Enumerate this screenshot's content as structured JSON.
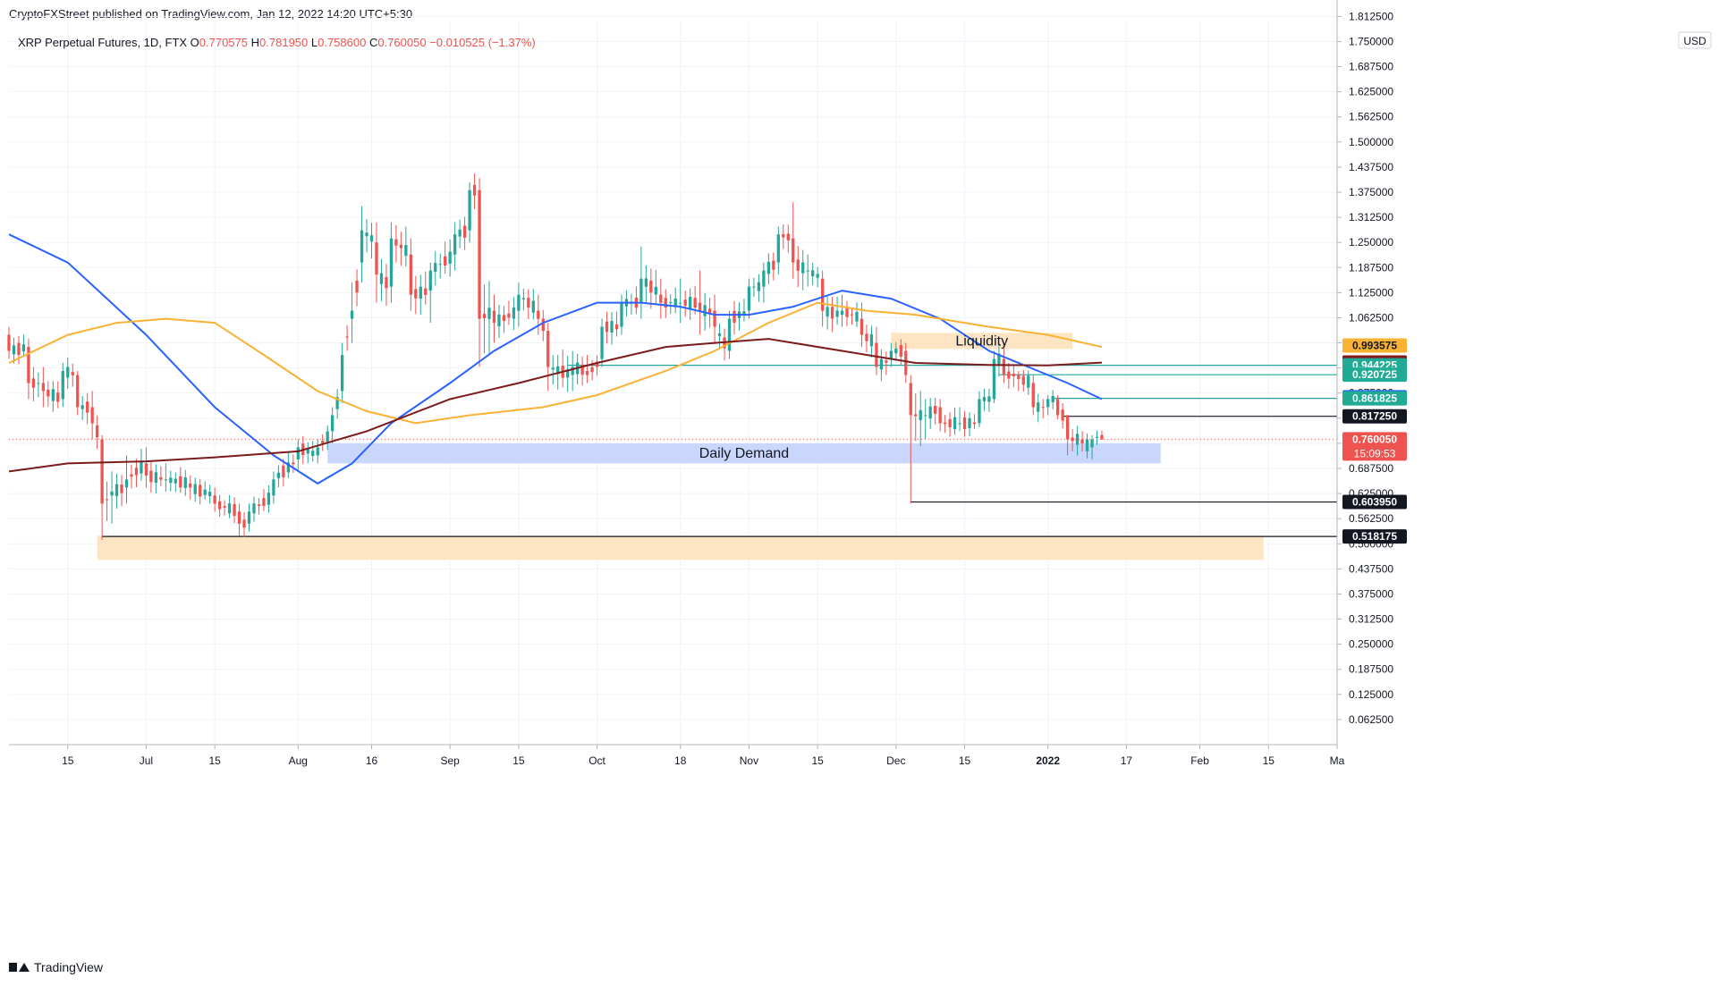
{
  "header": {
    "published": "CryptoFXStreet published on TradingView.com, Jan 12, 2022 14:20 UTC+5:30"
  },
  "footer": {
    "brand": "TradingView"
  },
  "colors": {
    "up": "#26a69a",
    "down": "#ef5350",
    "ma_blue": "#2962ff",
    "ma_orange": "#f9b233",
    "ma_dark": "#7b1b1b",
    "demand_zone": "#c5d5fb",
    "liquidity_zone": "#fde4c0",
    "grid": "#f0f3fa"
  },
  "chart_data": {
    "type": "candlestick",
    "symbol_line": {
      "name": "XRP Perpetual Futures, 1D, FTX",
      "o_label": "O",
      "o": "0.770575",
      "h_label": "H",
      "h": "0.781950",
      "l_label": "L",
      "l": "0.758600",
      "c_label": "C",
      "c": "0.760050",
      "change": "−0.010525 (−1.37%)"
    },
    "currency": "USD",
    "ylim": [
      0.0,
      1.8
    ],
    "y_ticks": [
      "0.062500",
      "0.125000",
      "0.187500",
      "0.250000",
      "0.312500",
      "0.375000",
      "0.437500",
      "0.500000",
      "0.562500",
      "0.625000",
      "0.687500",
      "0.750000",
      "0.812500",
      "0.875000",
      "0.937500",
      "1.000000",
      "1.062500",
      "1.125000",
      "1.187500",
      "1.250000",
      "1.312500",
      "1.375000",
      "1.437500",
      "1.500000",
      "1.562500",
      "1.625000",
      "1.687500",
      "1.750000",
      "1.812500"
    ],
    "x_range": [
      "2021-06-03",
      "2022-03-01"
    ],
    "x_ticks": [
      {
        "date": "2021-06-15",
        "label": "15"
      },
      {
        "date": "2021-07-01",
        "label": "Jul"
      },
      {
        "date": "2021-07-15",
        "label": "15"
      },
      {
        "date": "2021-08-01",
        "label": "Aug"
      },
      {
        "date": "2021-08-16",
        "label": "16"
      },
      {
        "date": "2021-09-01",
        "label": "Sep"
      },
      {
        "date": "2021-09-15",
        "label": "15"
      },
      {
        "date": "2021-10-01",
        "label": "Oct"
      },
      {
        "date": "2021-10-18",
        "label": "18"
      },
      {
        "date": "2021-11-01",
        "label": "Nov"
      },
      {
        "date": "2021-11-15",
        "label": "15"
      },
      {
        "date": "2021-12-01",
        "label": "Dec"
      },
      {
        "date": "2021-12-15",
        "label": "15"
      },
      {
        "date": "2022-01-01",
        "label": "2022"
      },
      {
        "date": "2022-01-17",
        "label": "17"
      },
      {
        "date": "2022-02-01",
        "label": "Feb"
      },
      {
        "date": "2022-02-15",
        "label": "15"
      },
      {
        "date": "2022-03-01",
        "label": "Ma"
      }
    ],
    "ohlc_anchors": [
      [
        "2021-06-03",
        1.02,
        1.04,
        0.96,
        0.98
      ],
      [
        "2021-06-07",
        0.99,
        1.01,
        0.86,
        0.9
      ],
      [
        "2021-06-10",
        0.9,
        0.94,
        0.84,
        0.88
      ],
      [
        "2021-06-14",
        0.86,
        0.95,
        0.84,
        0.93
      ],
      [
        "2021-06-17",
        0.92,
        0.93,
        0.82,
        0.84
      ],
      [
        "2021-06-20",
        0.84,
        0.88,
        0.76,
        0.8
      ],
      [
        "2021-06-22",
        0.76,
        0.77,
        0.51,
        0.6
      ],
      [
        "2021-06-24",
        0.62,
        0.68,
        0.55,
        0.63
      ],
      [
        "2021-06-27",
        0.64,
        0.72,
        0.6,
        0.66
      ],
      [
        "2021-07-01",
        0.7,
        0.74,
        0.64,
        0.67
      ],
      [
        "2021-07-05",
        0.66,
        0.7,
        0.63,
        0.66
      ],
      [
        "2021-07-10",
        0.65,
        0.67,
        0.61,
        0.64
      ],
      [
        "2021-07-15",
        0.62,
        0.64,
        0.58,
        0.6
      ],
      [
        "2021-07-20",
        0.58,
        0.6,
        0.52,
        0.55
      ],
      [
        "2021-07-22",
        0.55,
        0.6,
        0.53,
        0.58
      ],
      [
        "2021-07-27",
        0.62,
        0.68,
        0.6,
        0.66
      ],
      [
        "2021-08-01",
        0.71,
        0.76,
        0.68,
        0.74
      ],
      [
        "2021-08-05",
        0.72,
        0.76,
        0.7,
        0.74
      ],
      [
        "2021-08-08",
        0.78,
        0.84,
        0.75,
        0.82
      ],
      [
        "2021-08-10",
        0.88,
        1.0,
        0.85,
        0.97
      ],
      [
        "2021-08-12",
        1.06,
        1.15,
        1.0,
        1.08
      ],
      [
        "2021-08-14",
        1.2,
        1.34,
        1.15,
        1.28
      ],
      [
        "2021-08-17",
        1.25,
        1.3,
        1.1,
        1.17
      ],
      [
        "2021-08-20",
        1.14,
        1.3,
        1.1,
        1.26
      ],
      [
        "2021-08-24",
        1.22,
        1.26,
        1.08,
        1.12
      ],
      [
        "2021-08-28",
        1.13,
        1.2,
        1.05,
        1.18
      ],
      [
        "2021-09-02",
        1.22,
        1.3,
        1.18,
        1.27
      ],
      [
        "2021-09-05",
        1.28,
        1.4,
        1.25,
        1.38
      ],
      [
        "2021-09-07",
        1.38,
        1.41,
        0.94,
        1.06
      ],
      [
        "2021-09-10",
        1.08,
        1.12,
        1.0,
        1.05
      ],
      [
        "2021-09-15",
        1.08,
        1.15,
        1.04,
        1.12
      ],
      [
        "2021-09-19",
        1.08,
        1.12,
        1.02,
        1.06
      ],
      [
        "2021-09-21",
        1.03,
        1.05,
        0.88,
        0.94
      ],
      [
        "2021-09-26",
        0.92,
        0.98,
        0.88,
        0.94
      ],
      [
        "2021-09-29",
        0.93,
        0.97,
        0.9,
        0.92
      ],
      [
        "2021-10-02",
        0.96,
        1.06,
        0.94,
        1.04
      ],
      [
        "2021-10-06",
        1.04,
        1.12,
        1.02,
        1.1
      ],
      [
        "2021-10-10",
        1.1,
        1.24,
        1.06,
        1.16
      ],
      [
        "2021-10-14",
        1.12,
        1.16,
        1.06,
        1.1
      ],
      [
        "2021-10-18",
        1.1,
        1.16,
        1.05,
        1.1
      ],
      [
        "2021-10-22",
        1.1,
        1.18,
        1.02,
        1.08
      ],
      [
        "2021-10-25",
        1.08,
        1.12,
        1.0,
        1.04
      ],
      [
        "2021-10-28",
        0.98,
        1.08,
        0.96,
        1.06
      ],
      [
        "2021-11-01",
        1.08,
        1.16,
        1.06,
        1.14
      ],
      [
        "2021-11-04",
        1.14,
        1.2,
        1.1,
        1.18
      ],
      [
        "2021-11-07",
        1.2,
        1.29,
        1.17,
        1.27
      ],
      [
        "2021-11-10",
        1.26,
        1.35,
        1.16,
        1.2
      ],
      [
        "2021-11-13",
        1.18,
        1.22,
        1.14,
        1.18
      ],
      [
        "2021-11-16",
        1.16,
        1.18,
        1.04,
        1.08
      ],
      [
        "2021-11-20",
        1.07,
        1.12,
        1.04,
        1.08
      ],
      [
        "2021-11-24",
        1.06,
        1.1,
        0.99,
        1.02
      ],
      [
        "2021-11-27",
        1.0,
        1.04,
        0.92,
        0.94
      ],
      [
        "2021-11-30",
        0.96,
        1.0,
        0.94,
        0.98
      ],
      [
        "2021-12-03",
        0.98,
        1.0,
        0.9,
        0.92
      ],
      [
        "2021-12-04",
        0.9,
        0.92,
        0.6,
        0.82
      ],
      [
        "2021-12-07",
        0.82,
        0.86,
        0.76,
        0.82
      ],
      [
        "2021-12-10",
        0.84,
        0.86,
        0.78,
        0.8
      ],
      [
        "2021-12-14",
        0.8,
        0.84,
        0.78,
        0.8
      ],
      [
        "2021-12-18",
        0.8,
        0.88,
        0.79,
        0.86
      ],
      [
        "2021-12-21",
        0.86,
        0.98,
        0.85,
        0.96
      ],
      [
        "2021-12-23",
        0.96,
        1.0,
        0.9,
        0.92
      ],
      [
        "2021-12-26",
        0.92,
        0.93,
        0.88,
        0.91
      ],
      [
        "2021-12-29",
        0.9,
        0.92,
        0.82,
        0.84
      ],
      [
        "2022-01-01",
        0.84,
        0.87,
        0.82,
        0.86
      ],
      [
        "2022-01-03",
        0.86,
        0.87,
        0.81,
        0.82
      ],
      [
        "2022-01-05",
        0.82,
        0.82,
        0.72,
        0.76
      ],
      [
        "2022-01-08",
        0.76,
        0.78,
        0.73,
        0.75
      ],
      [
        "2022-01-10",
        0.74,
        0.77,
        0.71,
        0.76
      ],
      [
        "2022-01-12",
        0.770575,
        0.78195,
        0.7586,
        0.76005
      ]
    ],
    "moving_averages": [
      {
        "color": "#2962ff",
        "points": [
          [
            "2021-06-03",
            1.27
          ],
          [
            "2021-06-15",
            1.2
          ],
          [
            "2021-07-01",
            1.02
          ],
          [
            "2021-07-15",
            0.84
          ],
          [
            "2021-07-27",
            0.72
          ],
          [
            "2021-08-05",
            0.65
          ],
          [
            "2021-08-12",
            0.7
          ],
          [
            "2021-08-20",
            0.8
          ],
          [
            "2021-09-01",
            0.9
          ],
          [
            "2021-09-10",
            0.98
          ],
          [
            "2021-09-20",
            1.05
          ],
          [
            "2021-10-01",
            1.1
          ],
          [
            "2021-10-10",
            1.1
          ],
          [
            "2021-10-18",
            1.09
          ],
          [
            "2021-10-25",
            1.07
          ],
          [
            "2021-11-01",
            1.07
          ],
          [
            "2021-11-10",
            1.09
          ],
          [
            "2021-11-20",
            1.13
          ],
          [
            "2021-11-30",
            1.11
          ],
          [
            "2021-12-10",
            1.06
          ],
          [
            "2021-12-20",
            0.98
          ],
          [
            "2021-12-28",
            0.94
          ],
          [
            "2022-01-05",
            0.9
          ],
          [
            "2022-01-12",
            0.86
          ]
        ]
      },
      {
        "color": "#f9b233",
        "points": [
          [
            "2021-06-03",
            0.95
          ],
          [
            "2021-06-15",
            1.02
          ],
          [
            "2021-06-25",
            1.05
          ],
          [
            "2021-07-05",
            1.06
          ],
          [
            "2021-07-15",
            1.05
          ],
          [
            "2021-07-25",
            0.97
          ],
          [
            "2021-08-05",
            0.88
          ],
          [
            "2021-08-15",
            0.83
          ],
          [
            "2021-08-25",
            0.8
          ],
          [
            "2021-09-05",
            0.82
          ],
          [
            "2021-09-20",
            0.84
          ],
          [
            "2021-10-01",
            0.87
          ],
          [
            "2021-10-15",
            0.93
          ],
          [
            "2021-10-25",
            0.98
          ],
          [
            "2021-11-05",
            1.05
          ],
          [
            "2021-11-15",
            1.1
          ],
          [
            "2021-11-25",
            1.08
          ],
          [
            "2021-12-05",
            1.07
          ],
          [
            "2021-12-20",
            1.04
          ],
          [
            "2022-01-01",
            1.02
          ],
          [
            "2022-01-12",
            0.99
          ]
        ]
      },
      {
        "color": "#7b1b1b",
        "points": [
          [
            "2021-06-03",
            0.68
          ],
          [
            "2021-06-15",
            0.7
          ],
          [
            "2021-07-01",
            0.705
          ],
          [
            "2021-07-15",
            0.715
          ],
          [
            "2021-08-01",
            0.73
          ],
          [
            "2021-08-15",
            0.78
          ],
          [
            "2021-09-01",
            0.86
          ],
          [
            "2021-09-15",
            0.9
          ],
          [
            "2021-10-01",
            0.95
          ],
          [
            "2021-10-15",
            0.99
          ],
          [
            "2021-10-25",
            1.0
          ],
          [
            "2021-11-05",
            1.01
          ],
          [
            "2021-11-20",
            0.98
          ],
          [
            "2021-12-05",
            0.95
          ],
          [
            "2021-12-20",
            0.945
          ],
          [
            "2022-01-01",
            0.944
          ],
          [
            "2022-01-12",
            0.951
          ]
        ]
      }
    ],
    "zones": [
      {
        "label": "Daily Demand",
        "x0": "2021-08-07",
        "x1": "2022-01-24",
        "y0": 0.7,
        "y1": 0.75,
        "color": "#c5d5fb"
      },
      {
        "label": "Liquidity",
        "x0": "2021-06-21",
        "x1": "2022-02-14",
        "y0": 0.46,
        "y1": 0.52,
        "color": "#fde4c0"
      },
      {
        "label": "Liquidity",
        "x0": "2021-11-30",
        "x1": "2022-01-06",
        "y0": 0.985,
        "y1": 1.025,
        "color": "#fde4c0"
      }
    ],
    "level_lines": [
      {
        "y": 0.944225,
        "x0": "2021-09-25",
        "color": "#26a69a"
      },
      {
        "y": 0.920725,
        "x0": "2021-12-22",
        "color": "#26a69a"
      },
      {
        "y": 0.861825,
        "x0": "2022-01-02",
        "color": "#26a69a"
      },
      {
        "y": 0.81725,
        "x0": "2022-01-04",
        "color": "#131722"
      },
      {
        "y": 0.60395,
        "x0": "2021-12-04",
        "color": "#131722"
      },
      {
        "y": 0.518175,
        "x0": "2021-06-22",
        "color": "#131722"
      }
    ],
    "price_tags": [
      {
        "value": "0.993575",
        "y": 0.993575,
        "bg": "#f9b233",
        "fg": "#131722"
      },
      {
        "value": "0.951150",
        "y": 0.95115,
        "bg": "#801922",
        "fg": "#ffffff"
      },
      {
        "value": "0.944225",
        "y": 0.944225,
        "bg": "#22ab94",
        "fg": "#ffffff"
      },
      {
        "value": "0.920725",
        "y": 0.920725,
        "bg": "#22ab94",
        "fg": "#ffffff"
      },
      {
        "value": "0.864600",
        "y": 0.8646,
        "bg": "#2962ff",
        "fg": "#ffffff"
      },
      {
        "value": "0.861825",
        "y": 0.861825,
        "bg": "#22ab94",
        "fg": "#ffffff"
      },
      {
        "value": "0.817250",
        "y": 0.81725,
        "bg": "#131722",
        "fg": "#ffffff"
      },
      {
        "value": "0.760050",
        "y": 0.76005,
        "bg": "#ef5350",
        "fg": "#ffffff",
        "sub": "15:09:53"
      },
      {
        "value": "0.603950",
        "y": 0.60395,
        "bg": "#131722",
        "fg": "#ffffff"
      },
      {
        "value": "0.518175",
        "y": 0.518175,
        "bg": "#131722",
        "fg": "#ffffff"
      }
    ],
    "last_price": 0.76005
  }
}
